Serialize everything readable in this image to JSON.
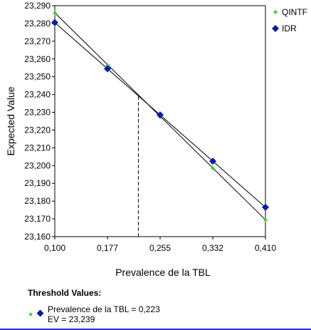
{
  "chart_data": {
    "type": "line",
    "xlabel": "Prevalence de la TBL",
    "ylabel": "Expected Value",
    "x_ticks": [
      "0,100",
      "0,177",
      "0,255",
      "0,332",
      "0,410"
    ],
    "y_ticks": [
      "23,160",
      "23,170",
      "23,180",
      "23,190",
      "23,200",
      "23,210",
      "23,220",
      "23,230",
      "23,240",
      "23,250",
      "23,260",
      "23,270",
      "23,280",
      "23,290"
    ],
    "xlim": [
      0.1,
      0.41
    ],
    "ylim": [
      23.16,
      23.29
    ],
    "grid": false,
    "legend_position": "top-right",
    "series": [
      {
        "name": "QINTF",
        "color": "#3ad63a",
        "marker": "small-diamond",
        "x": [
          0.1,
          0.1775,
          0.255,
          0.3325,
          0.41
        ],
        "y": [
          23.286,
          23.2565,
          23.2275,
          23.1985,
          23.1695
        ]
      },
      {
        "name": "IDR",
        "color": "#0a1aa8",
        "marker": "diamond",
        "x": [
          0.1,
          0.1775,
          0.255,
          0.3325,
          0.41
        ],
        "y": [
          23.2805,
          23.2545,
          23.2285,
          23.2025,
          23.1765
        ]
      }
    ],
    "threshold": {
      "x": 0.223,
      "y": 23.239
    }
  },
  "threshold": {
    "title": "Threshold Values:",
    "line1": "Prevalence de la TBL = 0,223",
    "line2": "EV = 23,239"
  }
}
